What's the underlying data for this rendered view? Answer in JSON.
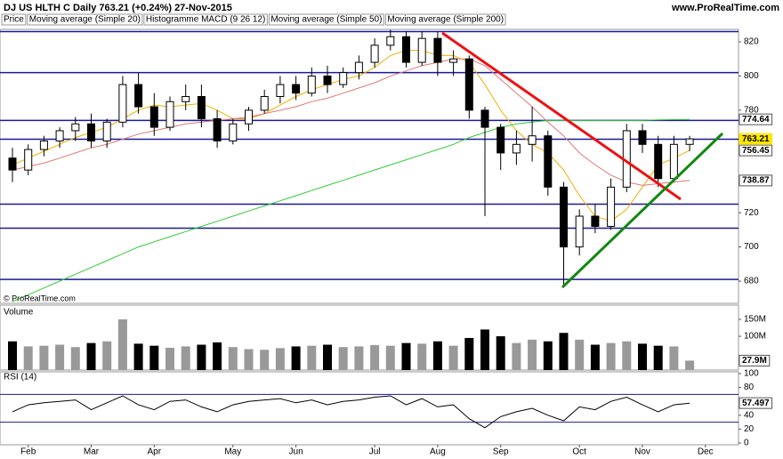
{
  "header": {
    "title": "DJ US HLTH C   Daily   763.21 (+0.24%)   27-Nov-2015",
    "site": "www.ProRealTime.com",
    "copyright": "© ProRealTime.com"
  },
  "chart_data": [
    {
      "type": "candlestick",
      "price_label": "Price",
      "macd_label": "Histogramme MACD (9 26 12)",
      "categories": [
        null,
        "Feb",
        null,
        null,
        null,
        "Mar",
        null,
        null,
        null,
        "Apr",
        null,
        null,
        null,
        null,
        "May",
        null,
        null,
        null,
        "Jun",
        null,
        null,
        null,
        null,
        "Jul",
        null,
        null,
        null,
        "Aug",
        null,
        null,
        null,
        "Sep",
        null,
        null,
        null,
        null,
        "Oct",
        null,
        null,
        null,
        "Nov",
        null,
        null,
        null,
        "Dec"
      ],
      "candles": [
        [
          752,
          758,
          738,
          745
        ],
        [
          745,
          760,
          742,
          757
        ],
        [
          757,
          765,
          753,
          762
        ],
        [
          762,
          770,
          758,
          768
        ],
        [
          768,
          776,
          762,
          772
        ],
        [
          772,
          778,
          758,
          762
        ],
        [
          762,
          775,
          758,
          773
        ],
        [
          773,
          800,
          770,
          795
        ],
        [
          795,
          802,
          778,
          782
        ],
        [
          782,
          790,
          765,
          770
        ],
        [
          770,
          788,
          768,
          785
        ],
        [
          785,
          795,
          780,
          788
        ],
        [
          788,
          795,
          770,
          775
        ],
        [
          775,
          780,
          758,
          762
        ],
        [
          762,
          775,
          760,
          772
        ],
        [
          772,
          782,
          768,
          780
        ],
        [
          780,
          792,
          778,
          788
        ],
        [
          788,
          800,
          784,
          795
        ],
        [
          795,
          800,
          786,
          790
        ],
        [
          790,
          805,
          788,
          800
        ],
        [
          800,
          806,
          790,
          795
        ],
        [
          795,
          805,
          793,
          802
        ],
        [
          802,
          812,
          798,
          808
        ],
        [
          808,
          822,
          805,
          818
        ],
        [
          818,
          827,
          815,
          823
        ],
        [
          823,
          826,
          805,
          808
        ],
        [
          808,
          826,
          806,
          822
        ],
        [
          822,
          826,
          800,
          808
        ],
        [
          808,
          815,
          800,
          810
        ],
        [
          810,
          812,
          775,
          780
        ],
        [
          780,
          782,
          718,
          770
        ],
        [
          770,
          772,
          745,
          755
        ],
        [
          755,
          768,
          748,
          760
        ],
        [
          760,
          782,
          750,
          765
        ],
        [
          765,
          768,
          730,
          735
        ],
        [
          735,
          738,
          677,
          700
        ],
        [
          700,
          722,
          695,
          718
        ],
        [
          718,
          725,
          708,
          712
        ],
        [
          712,
          740,
          710,
          735
        ],
        [
          735,
          772,
          732,
          768
        ],
        [
          768,
          772,
          755,
          760
        ],
        [
          760,
          765,
          735,
          740
        ],
        [
          740,
          765,
          738,
          760
        ],
        [
          760,
          765,
          756,
          763.21
        ],
        null
      ],
      "series": [
        {
          "name": "Moving average (Simple 20)",
          "color": "#f0b000",
          "values": [
            748,
            752,
            756,
            760,
            764,
            767,
            770,
            775,
            780,
            783,
            782,
            783,
            784,
            780,
            775,
            775,
            778,
            783,
            788,
            792,
            795,
            798,
            800,
            805,
            812,
            815,
            815,
            812,
            812,
            808,
            795,
            780,
            768,
            760,
            755,
            745,
            730,
            718,
            715,
            722,
            735,
            748,
            752,
            756.45,
            null
          ]
        },
        {
          "name": "Moving average (Simple 50)",
          "color": "#e07878",
          "values": [
            745,
            747,
            749,
            752,
            755,
            758,
            760,
            763,
            766,
            768,
            770,
            772,
            773,
            774,
            775,
            776,
            778,
            780,
            782,
            785,
            787,
            790,
            793,
            796,
            800,
            803,
            806,
            808,
            810,
            810,
            806,
            798,
            790,
            782,
            773,
            765,
            755,
            748,
            742,
            738,
            736,
            737,
            738,
            738.87,
            null
          ]
        },
        {
          "name": "Moving average (Simple 200)",
          "color": "#33cc33",
          "values": [
            668,
            672,
            676,
            680,
            684,
            688,
            692,
            696,
            700,
            703,
            706,
            709,
            712,
            715,
            718,
            721,
            724,
            727,
            730,
            733,
            736,
            739,
            742,
            745,
            748,
            751,
            754,
            757,
            760,
            764,
            767,
            770,
            772,
            773,
            774,
            774,
            774,
            774,
            774,
            774,
            774,
            774.3,
            774.5,
            774.64,
            null
          ]
        }
      ],
      "hlines": [
        826,
        802,
        774,
        763,
        725,
        711,
        681
      ],
      "ylim": [
        667,
        827.3
      ],
      "yticks": [
        680,
        700,
        720,
        780,
        800,
        820
      ]
    },
    {
      "type": "bar",
      "title": "Volume",
      "values": [
        85,
        70,
        72,
        75,
        68,
        80,
        85,
        150,
        78,
        72,
        66,
        70,
        75,
        82,
        68,
        62,
        60,
        65,
        70,
        72,
        75,
        68,
        70,
        74,
        72,
        80,
        78,
        85,
        72,
        95,
        120,
        100,
        80,
        90,
        85,
        110,
        90,
        75,
        80,
        85,
        78,
        72,
        70,
        27.9,
        null
      ],
      "value_labels": [
        null,
        null,
        null,
        null,
        null,
        null,
        null,
        null,
        null,
        null,
        null,
        null,
        null,
        null,
        null,
        null,
        null,
        null,
        null,
        null,
        null,
        null,
        null,
        null,
        null,
        null,
        null,
        null,
        null,
        null,
        null,
        null,
        null,
        null,
        null,
        null,
        null,
        null,
        null,
        null,
        null,
        null,
        null,
        "27.9M",
        null
      ],
      "ylim": [
        0,
        187
      ],
      "yticks": [
        {
          "value": 100,
          "label": "100M"
        },
        {
          "value": 150,
          "label": "150M"
        }
      ]
    },
    {
      "type": "line",
      "title": "RSI (14)",
      "color": "#000000",
      "values": [
        45,
        55,
        58,
        60,
        62,
        48,
        58,
        68,
        55,
        48,
        60,
        62,
        52,
        45,
        55,
        60,
        62,
        64,
        58,
        62,
        55,
        60,
        62,
        66,
        68,
        55,
        64,
        52,
        55,
        35,
        22,
        38,
        45,
        50,
        40,
        32,
        52,
        48,
        60,
        66,
        55,
        45,
        55,
        57.497,
        null
      ],
      "hlines": [
        70,
        30
      ],
      "ylim": [
        0,
        100
      ],
      "yticks": [
        0,
        20,
        40,
        80,
        100
      ]
    }
  ]
}
